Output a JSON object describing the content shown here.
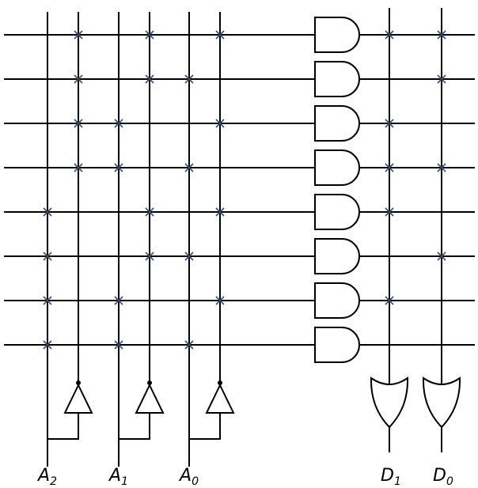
{
  "inputs": [
    {
      "name": "A",
      "index": "2"
    },
    {
      "name": "A",
      "index": "1"
    },
    {
      "name": "A",
      "index": "0"
    }
  ],
  "outputs": [
    {
      "name": "D",
      "index": "1"
    },
    {
      "name": "D",
      "index": "0"
    }
  ]
}
